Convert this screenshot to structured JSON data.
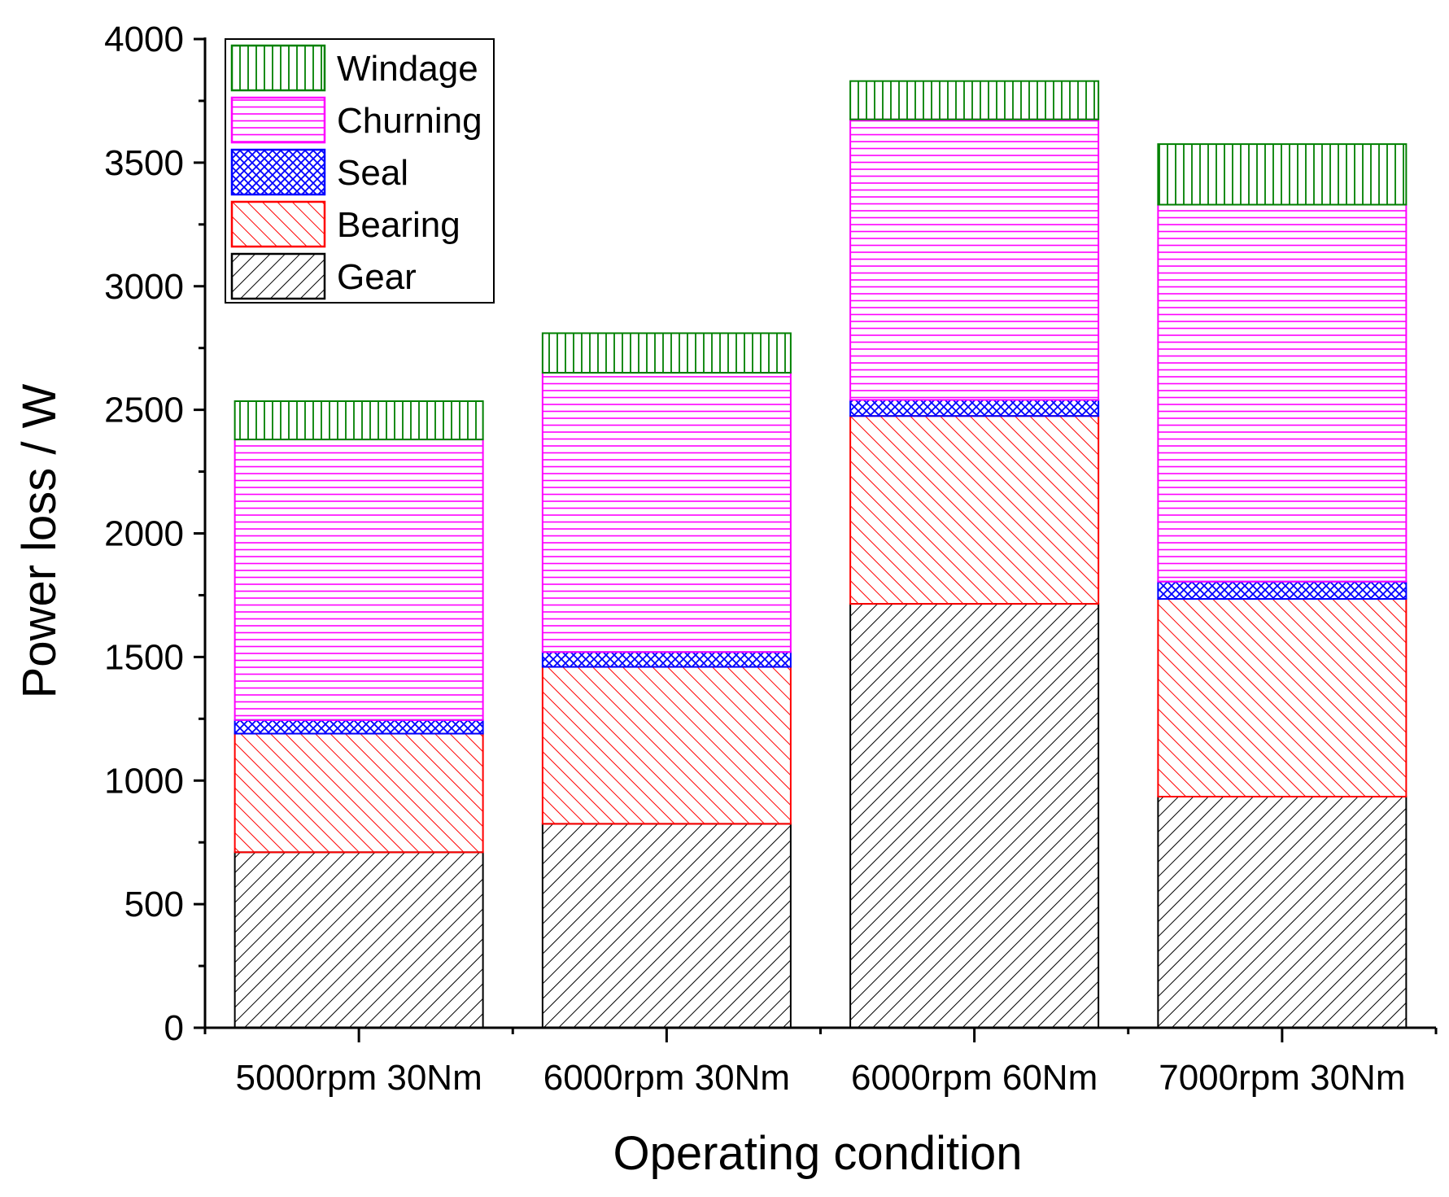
{
  "chart_data": {
    "type": "bar",
    "stacked": true,
    "xlabel": "Operating condition",
    "ylabel": "Power loss / W",
    "ylim": [
      0,
      4000
    ],
    "yticks": [
      0,
      500,
      1000,
      1500,
      2000,
      2500,
      3000,
      3500,
      4000
    ],
    "categories": [
      "5000rpm 30Nm",
      "6000rpm 30Nm",
      "6000rpm 60Nm",
      "7000rpm 30Nm"
    ],
    "series": [
      {
        "name": "Gear",
        "values": [
          710,
          825,
          1715,
          935
        ],
        "color": "#000000",
        "pattern": "diagonal-up"
      },
      {
        "name": "Bearing",
        "values": [
          480,
          635,
          760,
          800
        ],
        "color": "#ff0000",
        "pattern": "diagonal-down"
      },
      {
        "name": "Seal",
        "values": [
          55,
          60,
          65,
          70
        ],
        "color": "#0000ff",
        "pattern": "crosshatch"
      },
      {
        "name": "Churning",
        "values": [
          1135,
          1130,
          1135,
          1525
        ],
        "color": "#ff00ff",
        "pattern": "horizontal"
      },
      {
        "name": "Windage",
        "values": [
          155,
          160,
          155,
          245
        ],
        "color": "#008000",
        "pattern": "vertical"
      }
    ],
    "legend": {
      "position": "top-left",
      "order": [
        "Windage",
        "Churning",
        "Seal",
        "Bearing",
        "Gear"
      ]
    }
  }
}
